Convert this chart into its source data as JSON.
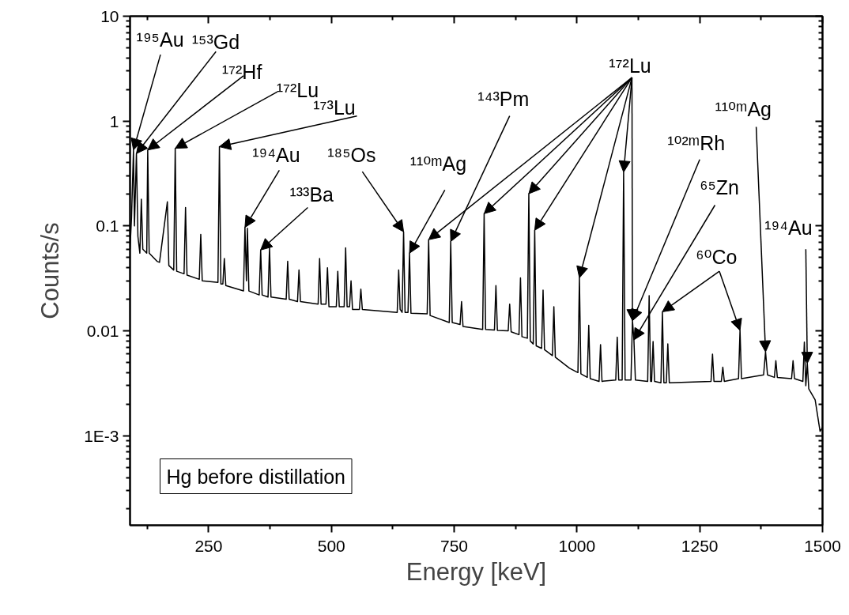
{
  "chart_data": {
    "type": "line",
    "xlabel": "Energy [keV]",
    "ylabel": "Counts/s",
    "xlim": [
      90,
      1500
    ],
    "ylim": [
      0.00014,
      10
    ],
    "log": "y",
    "xticks": [
      250,
      500,
      750,
      1000,
      1250,
      1500
    ],
    "yticks": [
      {
        "value": 0.001,
        "label": "1E-3"
      },
      0.01,
      0.1,
      1,
      10
    ],
    "marker": "none",
    "line_style": "solid",
    "series": [
      {
        "color": "#000000",
        "x": [
          90,
          93,
          97,
          99,
          103,
          106,
          110,
          113,
          116,
          124,
          126,
          129,
          145,
          150,
          166,
          169,
          179,
          182,
          185,
          200,
          203,
          206,
          231,
          234,
          237,
          269,
          272,
          275,
          279,
          282,
          285,
          321,
          324,
          327,
          329,
          332,
          353,
          356,
          359,
          371,
          374,
          377,
          408,
          411,
          414,
          431,
          434,
          437,
          473,
          476,
          479,
          489,
          492,
          495,
          510,
          513,
          516,
          526,
          529,
          532,
          537,
          540,
          543,
          557,
          560,
          563,
          634,
          637,
          640,
          644,
          647,
          650,
          656,
          659,
          662,
          695,
          698,
          701,
          740,
          743,
          746,
          762,
          765,
          768,
          808,
          811,
          814,
          832,
          835,
          838,
          860,
          863,
          866,
          882,
          885,
          888,
          899,
          902,
          905,
          911,
          914,
          917,
          928,
          931,
          934,
          950,
          953,
          956,
          985,
          1002,
          1005,
          1008,
          1021,
          1024,
          1027,
          1045,
          1048,
          1051,
          1079,
          1082,
          1085,
          1092,
          1095,
          1098,
          1110,
          1113,
          1116,
          1119,
          1144,
          1147,
          1150,
          1152,
          1155,
          1158,
          1171,
          1174,
          1177,
          1182,
          1185,
          1188,
          1273,
          1276,
          1279,
          1294,
          1297,
          1300,
          1329,
          1332,
          1335,
          1380,
          1384,
          1388,
          1402,
          1405,
          1408,
          1437,
          1440,
          1443,
          1460,
          1463,
          1466,
          1469,
          1472,
          1485,
          1495,
          1500
        ],
        "values": [
          0.06,
          0.12,
          0.53,
          0.1,
          0.49,
          0.08,
          0.055,
          0.18,
          0.06,
          0.055,
          0.53,
          0.055,
          0.046,
          0.045,
          0.17,
          0.042,
          0.038,
          0.55,
          0.037,
          0.035,
          0.15,
          0.034,
          0.031,
          0.083,
          0.03,
          0.029,
          0.57,
          0.028,
          0.028,
          0.049,
          0.027,
          0.024,
          0.097,
          0.03,
          0.095,
          0.024,
          0.022,
          0.059,
          0.022,
          0.021,
          0.062,
          0.021,
          0.02,
          0.046,
          0.02,
          0.019,
          0.038,
          0.019,
          0.018,
          0.049,
          0.018,
          0.018,
          0.04,
          0.017,
          0.017,
          0.037,
          0.017,
          0.017,
          0.062,
          0.017,
          0.017,
          0.03,
          0.016,
          0.016,
          0.025,
          0.016,
          0.015,
          0.038,
          0.016,
          0.015,
          0.088,
          0.015,
          0.015,
          0.055,
          0.0147,
          0.0145,
          0.074,
          0.014,
          0.012,
          0.071,
          0.012,
          0.0115,
          0.019,
          0.011,
          0.0103,
          0.131,
          0.0103,
          0.0102,
          0.027,
          0.0101,
          0.01,
          0.018,
          0.0098,
          0.0092,
          0.032,
          0.0088,
          0.0085,
          0.203,
          0.008,
          0.0075,
          0.091,
          0.0072,
          0.0068,
          0.0245,
          0.0066,
          0.0058,
          0.017,
          0.0056,
          0.0044,
          0.004,
          0.032,
          0.0039,
          0.0036,
          0.0113,
          0.0035,
          0.0033,
          0.0074,
          0.0033,
          0.0034,
          0.0087,
          0.0034,
          0.0034,
          0.326,
          0.0034,
          0.0034,
          0.0125,
          0.0082,
          0.0034,
          0.0033,
          0.0217,
          0.0033,
          0.0033,
          0.0079,
          0.0033,
          0.0032,
          0.0152,
          0.0032,
          0.0032,
          0.0075,
          0.0032,
          0.0033,
          0.006,
          0.0033,
          0.0033,
          0.0045,
          0.0033,
          0.0035,
          0.0101,
          0.0035,
          0.0038,
          0.0063,
          0.0038,
          0.0036,
          0.0052,
          0.0036,
          0.0035,
          0.0052,
          0.0035,
          0.0033,
          0.0078,
          0.003,
          0.0049,
          0.0028,
          0.0022,
          0.0011,
          0.0012
        ]
      }
    ],
    "annotations": [
      {
        "text": "¹⁹⁵Au",
        "x": 97,
        "y": 0.53
      },
      {
        "text": "¹⁵³Gd",
        "x": 103,
        "y": 0.49
      },
      {
        "text": "¹⁷²Hf",
        "x": 126,
        "y": 0.53
      },
      {
        "text": "¹⁷²Lu",
        "x": 182,
        "y": 0.55
      },
      {
        "text": "¹⁷³Lu",
        "x": 272,
        "y": 0.57
      },
      {
        "text": "¹⁹⁴Au",
        "x": 324,
        "y": 0.097
      },
      {
        "text": "¹³³Ba",
        "x": 356,
        "y": 0.059
      },
      {
        "text": "¹⁸⁵Os",
        "x": 647,
        "y": 0.088
      },
      {
        "text": "¹¹⁰ᵐAg",
        "x": 659,
        "y": 0.055
      },
      {
        "text": "¹⁴³Pm",
        "x": 743,
        "y": 0.071
      },
      {
        "text": "¹⁷²Lu",
        "x": 698,
        "y": 0.074
      },
      {
        "text": "¹⁰²ᵐRh",
        "x": 1113,
        "y": 0.0125
      },
      {
        "text": "⁶⁵Zn",
        "x": 1116,
        "y": 0.0082
      },
      {
        "text": "⁶⁰Co",
        "x": 1174,
        "y": 0.0152
      },
      {
        "text": "¹¹⁰ᵐAg",
        "x": 1384,
        "y": 0.0063
      },
      {
        "text": "¹⁹⁴Au",
        "x": 1469,
        "y": 0.0049
      },
      "Hg before distillation"
    ]
  }
}
